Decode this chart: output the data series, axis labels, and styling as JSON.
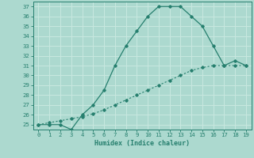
{
  "xlabel": "Humidex (Indice chaleur)",
  "line1_x": [
    0,
    1,
    2,
    3,
    4,
    5,
    6,
    7,
    8,
    9,
    10,
    11,
    12,
    13,
    14,
    15,
    16,
    17,
    18,
    19
  ],
  "line1_y": [
    25,
    25,
    25,
    24.5,
    26,
    27,
    28.5,
    31,
    33,
    34.5,
    36,
    37,
    37,
    37,
    36,
    35,
    33,
    31,
    31.5,
    31
  ],
  "line2_x": [
    0,
    1,
    2,
    3,
    4,
    5,
    6,
    7,
    8,
    9,
    10,
    11,
    12,
    13,
    14,
    15,
    16,
    17,
    18,
    19
  ],
  "line2_y": [
    25,
    25.2,
    25.4,
    25.6,
    25.8,
    26.1,
    26.5,
    27,
    27.5,
    28,
    28.5,
    29,
    29.5,
    30,
    30.5,
    30.8,
    31,
    31,
    31,
    31
  ],
  "line_color": "#267f6e",
  "bg_color": "#acd9cf",
  "grid_color": "#c8e8e0",
  "ylim": [
    24.5,
    37.5
  ],
  "xlim": [
    -0.5,
    19.5
  ],
  "yticks": [
    25,
    26,
    27,
    28,
    29,
    30,
    31,
    32,
    33,
    34,
    35,
    36,
    37
  ],
  "xticks": [
    0,
    1,
    2,
    3,
    4,
    5,
    6,
    7,
    8,
    9,
    10,
    11,
    12,
    13,
    14,
    15,
    16,
    17,
    18,
    19
  ]
}
